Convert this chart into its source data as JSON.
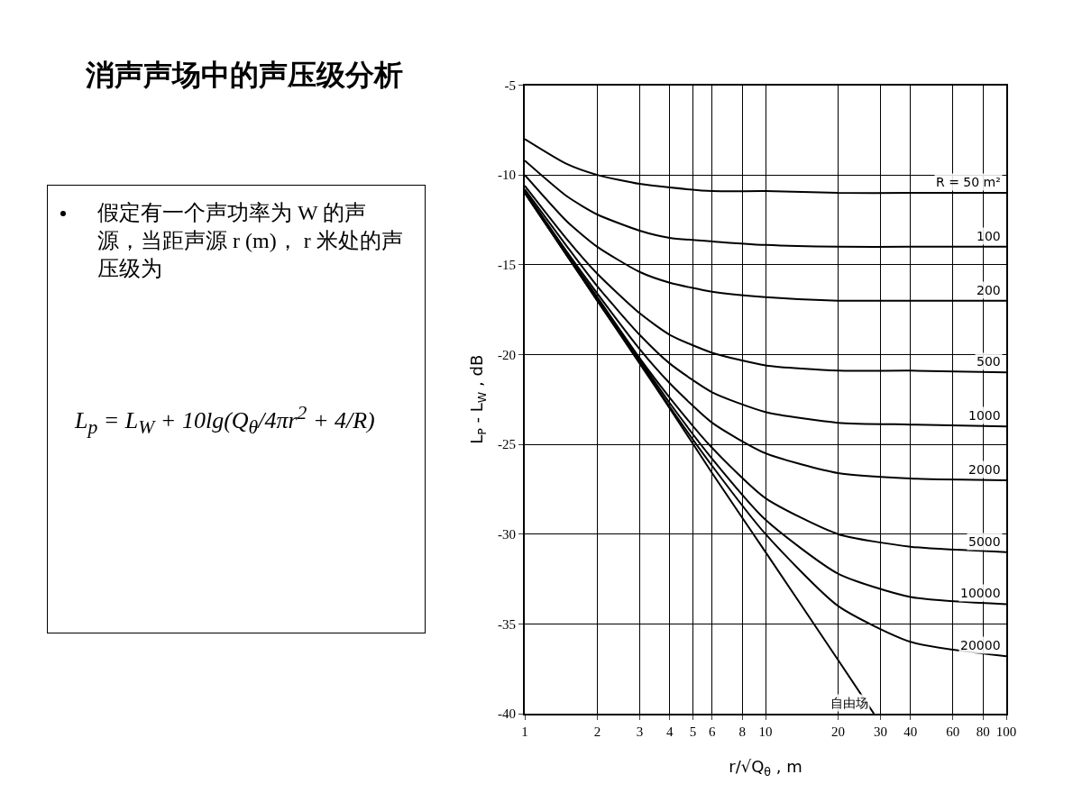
{
  "chart_data": {
    "type": "line",
    "title": "消声声场中的声压级分析",
    "annotations": [
      "假定有一个声功率为 W 的声源，当距声源 r (m)， r 米处的声压级为",
      "L$_{p}$ = L$_{W}$ + 10lg(Q$_{θ}$/4πr$^{2}$ + 4/R)"
    ],
    "xlabel": "r/√Q$_{θ}$ , m",
    "ylabel": "L$_{P}$ - L$_{W}$ , dB",
    "log": "x",
    "grid": true,
    "legend": false,
    "line_style": "solid",
    "marker": "none",
    "xlim": [
      1,
      100
    ],
    "xticks": [
      1,
      2,
      3,
      4,
      5,
      6,
      8,
      10,
      20,
      30,
      40,
      60,
      80,
      100
    ],
    "ylim": [
      -40,
      -5
    ],
    "yticks": [
      -5,
      -10,
      -15,
      -20,
      -25,
      -30,
      -35,
      -40
    ],
    "x": [
      1,
      1.5,
      2,
      3,
      4,
      6,
      10,
      20,
      40,
      100
    ],
    "series": [
      {
        "name": "自由场",
        "color": "#000000",
        "x": [
          1,
          1.5,
          2,
          3,
          4,
          6,
          10,
          20,
          28.2
        ],
        "values": [
          -11.0,
          -14.5,
          -17.0,
          -20.5,
          -23.0,
          -26.6,
          -31.0,
          -37.0,
          -40.0
        ]
      },
      {
        "name": "R = 50 m²",
        "color": "#000000",
        "values": [
          -8.0,
          -9.4,
          -10.0,
          -10.5,
          -10.7,
          -10.9,
          -10.9,
          -11.0,
          -11.0,
          -11.0
        ]
      },
      {
        "name": "100",
        "color": "#000000",
        "values": [
          -9.2,
          -11.2,
          -12.2,
          -13.1,
          -13.5,
          -13.7,
          -13.9,
          -14.0,
          -14.0,
          -14.0
        ]
      },
      {
        "name": "200",
        "color": "#000000",
        "values": [
          -10.0,
          -12.6,
          -14.0,
          -15.4,
          -16.0,
          -16.5,
          -16.8,
          -17.0,
          -17.0,
          -17.0
        ]
      },
      {
        "name": "500",
        "color": "#000000",
        "values": [
          -10.6,
          -13.6,
          -15.5,
          -17.7,
          -18.9,
          -19.9,
          -20.6,
          -20.9,
          -20.9,
          -21.0
        ]
      },
      {
        "name": "1000",
        "color": "#000000",
        "values": [
          -10.8,
          -14.0,
          -16.2,
          -18.9,
          -20.5,
          -22.1,
          -23.2,
          -23.8,
          -23.9,
          -24.0
        ]
      },
      {
        "name": "2000",
        "color": "#000000",
        "values": [
          -10.9,
          -14.3,
          -16.6,
          -19.7,
          -21.6,
          -23.8,
          -25.5,
          -26.6,
          -26.9,
          -27.0
        ]
      },
      {
        "name": "5000",
        "color": "#000000",
        "values": [
          -11.0,
          -14.4,
          -16.8,
          -20.2,
          -22.4,
          -25.2,
          -28.0,
          -30.0,
          -30.7,
          -31.0
        ]
      },
      {
        "name": "10000",
        "color": "#000000",
        "values": [
          -11.0,
          -14.5,
          -16.9,
          -20.3,
          -22.7,
          -25.8,
          -29.2,
          -32.2,
          -33.5,
          -33.9
        ]
      },
      {
        "name": "20000",
        "color": "#000000",
        "values": [
          -11.0,
          -14.5,
          -17.0,
          -20.4,
          -22.9,
          -26.2,
          -30.0,
          -34.0,
          -36.0,
          -36.8
        ]
      }
    ]
  }
}
